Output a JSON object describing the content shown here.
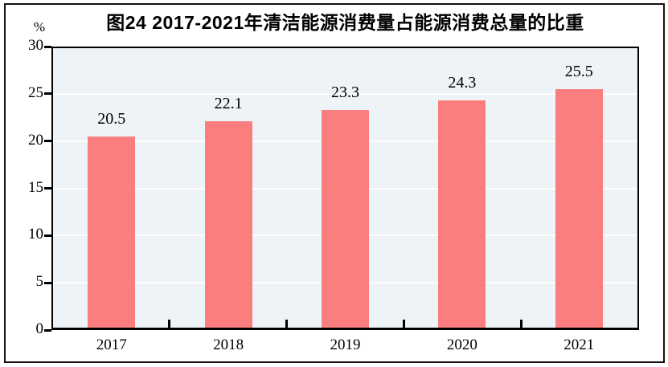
{
  "title": "图24  2017-2021年清洁能源消费量占能源消费总量的比重",
  "chart_data": {
    "type": "bar",
    "title": "图24  2017-2021年清洁能源消费量占能源消费总量的比重",
    "categories": [
      "2017",
      "2018",
      "2019",
      "2020",
      "2021"
    ],
    "values": [
      20.5,
      22.1,
      23.3,
      24.3,
      25.5
    ],
    "value_labels": [
      "20.5",
      "22.1",
      "23.3",
      "24.3",
      "25.5"
    ],
    "xlabel": "",
    "ylabel": "%",
    "ylim": [
      0,
      30
    ],
    "yticks": [
      0,
      5,
      10,
      15,
      20,
      25,
      30
    ],
    "grid": true,
    "legend_position": "none",
    "colors": {
      "bar": "#FA7E7E",
      "plot_background": "#EDF3F6",
      "gridline": "#FFFFFF",
      "axis": "#000000",
      "text": "#000000",
      "outer_border": "#111111"
    }
  }
}
